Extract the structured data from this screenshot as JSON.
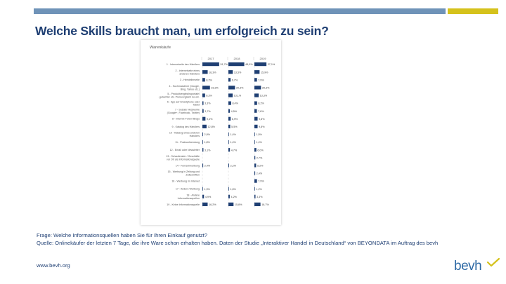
{
  "slide": {
    "title": "Welche Skills braucht man, um erfolgreich zu sein?",
    "footnote_question": "Frage: Welche Informationsquellen haben Sie für Ihren Einkauf genutzt?",
    "footnote_source": "Quelle: Onlinekäufer der letzten 7 Tage, die ihre Ware schon erhalten haben. Daten der Studie „Interaktiver Handel in Deutschland“ von BEYONDATA im Auftrag des bevh",
    "website": "www.bevh.org",
    "logo_text": "bevh",
    "colors": {
      "navy": "#1f3f73",
      "bar_accent": "#6f93b8",
      "bar_yellow": "#d5c21c",
      "series": "#1f3f73"
    }
  },
  "chart_data": {
    "type": "bar",
    "orientation": "horizontal",
    "subtitle": "Warenkäufe",
    "grid": false,
    "panels": [
      "2017",
      "2018",
      "2019"
    ],
    "categories": [
      "1 - Internetseite des Händlers",
      "2 - Internetseite eines anderen Händlers",
      "3 - Herstellerseite",
      "4 - Suchmaschine (Google, Bing, Yahoo etc.)",
      "5 - Produktvergleichsportale/ -gutachter etc. Preisvergleich de etc.",
      "6 - App auf Smartphone oder Tablet",
      "7 - Soziale Netzwerke (Google+, Facebook, Twitter)",
      "8 - Internet-Foren/ Blogs",
      "9 - Katalog des Händlers",
      "10 - Katalog eines anderen Händlers",
      "11 - Postwurfsendung",
      "12 - Email oder Newsletter",
      "13 - Schaufenster / Geschäfte vor Ort als Informationsquelle",
      "14 - Fernsehwerbung",
      "15 - Werbung in Zeitung und Zeitschriften",
      "16 - Werbung im Internet",
      "17 - Andere Werbung",
      "18 - Andere Informationsquellen",
      "19 - Keine Informationsquelle"
    ],
    "series": [
      {
        "name": "2017",
        "values": [
          51.7,
          16.3,
          8.2,
          23.3,
          8.3,
          3.3,
          3.7,
          9.4,
          12.8,
          2.0,
          1.8,
          3.1,
          null,
          2.4,
          null,
          null,
          1.3,
          4.9,
          16.2
        ],
        "labels": [
          "51,7%",
          "16,3%",
          "8,2%",
          "23,3%",
          "8,3%",
          "3,3%",
          "3,7%",
          "9,4%",
          "12,8%",
          "2,0%",
          "1,8%",
          "3,1%",
          "",
          "2,4%",
          "",
          "",
          "1,3%",
          "4,9%",
          "16,2%"
        ]
      },
      {
        "name": "2018",
        "values": [
          48.9,
          13.5,
          6.7,
          20.3,
          13.1,
          8.4,
          4.5,
          6.9,
          5.5,
          1.4,
          1.4,
          4.7,
          null,
          2.2,
          null,
          null,
          1.6,
          4.2,
          15.8
        ],
        "labels": [
          "48,9%",
          "13,5%",
          "6,7%",
          "20,3%",
          "13,1%",
          "8,4%",
          "4,5%",
          "6,9%",
          "5,5%",
          "1,4%",
          "1,4%",
          "4,7%",
          "",
          "2,2%",
          "",
          "",
          "1,6%",
          "4,2%",
          "15,8%"
        ]
      },
      {
        "name": "2019",
        "values": [
          37.1,
          15.9,
          7.9,
          20.3,
          13.3,
          8.2,
          7.6,
          9.8,
          9.8,
          1.5,
          1.4,
          6.0,
          2.7,
          5.2,
          2.4,
          7.9,
          1.2,
          3.3,
          18.7
        ],
        "labels": [
          "37,1%",
          "15,9%",
          "7,9%",
          "20,3%",
          "13,3%",
          "8,2%",
          "7,6%",
          "9,8%",
          "9,8%",
          "1,5%",
          "1,4%",
          "6,0%",
          "2,7%",
          "5,2%",
          "2,4%",
          "7,9%",
          "1,2%",
          "3,3%",
          "18,7%"
        ]
      }
    ]
  }
}
